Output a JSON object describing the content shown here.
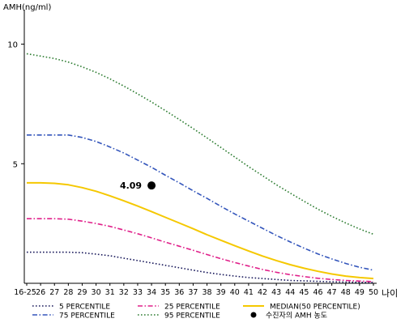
{
  "chart_data": {
    "type": "line",
    "ylabel": "AMH(ng/ml)",
    "xlabel": "나이",
    "categories": [
      "16-25",
      "26",
      "27",
      "28",
      "29",
      "30",
      "31",
      "32",
      "33",
      "34",
      "35",
      "36",
      "37",
      "38",
      "39",
      "40",
      "41",
      "42",
      "43",
      "44",
      "45",
      "46",
      "47",
      "48",
      "49",
      "50"
    ],
    "y_ticks": [
      5,
      10
    ],
    "ylim": [
      0,
      11
    ],
    "grid": false,
    "legend_position": "bottom",
    "series": [
      {
        "name": "5 PERCENTILE",
        "color": "#1a1a5c",
        "dash": "dot",
        "values": [
          1.3,
          1.3,
          1.3,
          1.3,
          1.28,
          1.22,
          1.15,
          1.05,
          0.95,
          0.85,
          0.75,
          0.65,
          0.55,
          0.45,
          0.37,
          0.3,
          0.24,
          0.2,
          0.16,
          0.12,
          0.1,
          0.08,
          0.06,
          0.05,
          0.04,
          0.03
        ]
      },
      {
        "name": "25 PERCENTILE",
        "color": "#e0208a",
        "dash": "dashdot",
        "values": [
          2.7,
          2.7,
          2.7,
          2.68,
          2.6,
          2.5,
          2.38,
          2.23,
          2.07,
          1.9,
          1.72,
          1.55,
          1.38,
          1.2,
          1.03,
          0.87,
          0.72,
          0.58,
          0.46,
          0.36,
          0.28,
          0.21,
          0.16,
          0.12,
          0.09,
          0.07
        ]
      },
      {
        "name": "MEDIAN(50 PERCENTILE)",
        "color": "#f5c800",
        "dash": "solid",
        "values": [
          4.2,
          4.2,
          4.18,
          4.12,
          4.0,
          3.85,
          3.66,
          3.45,
          3.23,
          3.0,
          2.76,
          2.52,
          2.28,
          2.03,
          1.8,
          1.57,
          1.35,
          1.14,
          0.95,
          0.78,
          0.63,
          0.5,
          0.39,
          0.3,
          0.24,
          0.2
        ]
      },
      {
        "name": "75 PERCENTILE",
        "color": "#3355bb",
        "dash": "dashdot",
        "values": [
          6.2,
          6.2,
          6.2,
          6.2,
          6.1,
          5.93,
          5.7,
          5.45,
          5.15,
          4.85,
          4.52,
          4.2,
          3.87,
          3.55,
          3.22,
          2.9,
          2.6,
          2.3,
          2.0,
          1.73,
          1.47,
          1.23,
          1.02,
          0.83,
          0.67,
          0.55
        ]
      },
      {
        "name": "95 PERCENTILE",
        "color": "#2e7d32",
        "dash": "dot",
        "values": [
          9.6,
          9.5,
          9.4,
          9.25,
          9.05,
          8.82,
          8.55,
          8.25,
          7.92,
          7.58,
          7.22,
          6.85,
          6.47,
          6.08,
          5.68,
          5.28,
          4.88,
          4.5,
          4.12,
          3.77,
          3.43,
          3.1,
          2.8,
          2.52,
          2.27,
          2.05
        ]
      }
    ],
    "patient": {
      "name": "수진자의 AMH 농도",
      "x": "34",
      "value": 4.09,
      "label": "4.09",
      "color": "#000000"
    }
  }
}
